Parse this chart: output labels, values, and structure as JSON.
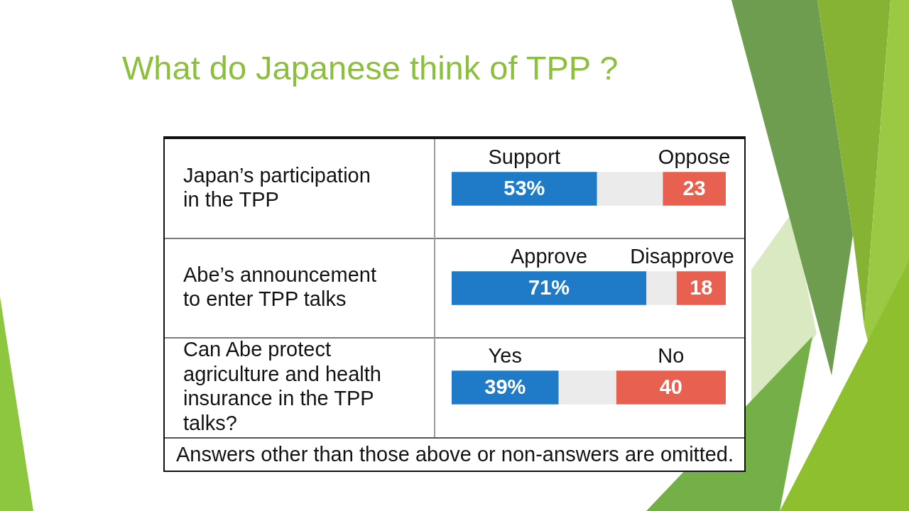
{
  "chart_data": {
    "type": "bar",
    "orientation": "horizontal",
    "stacked": true,
    "title": "What do Japanese think of TPP ?",
    "categories": [
      "Japan’s participation in the TPP",
      "Abe’s announcement to enter TPP talks",
      "Can Abe protect agriculture and health insurance in the TPP talks?"
    ],
    "series": [
      {
        "color": "#1f7bc8",
        "values": [
          53,
          71,
          39
        ],
        "value_labels": [
          "53%",
          "71%",
          "39%"
        ]
      },
      {
        "color": "#ebebeb",
        "values": [
          24,
          11,
          21
        ]
      },
      {
        "color": "#e8604f",
        "values": [
          23,
          18,
          40
        ],
        "value_labels": [
          "23",
          "18",
          "40"
        ]
      }
    ],
    "xlim": [
      0,
      100
    ],
    "tick_labels": "y",
    "grid": "y",
    "annotations": [
      "Support",
      "Oppose",
      "Approve",
      "Disapprove",
      "Yes",
      "No",
      "Answers other than those above or non-answers are omitted."
    ]
  }
}
